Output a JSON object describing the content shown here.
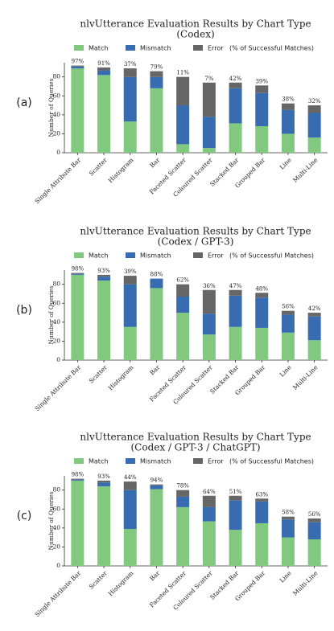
{
  "chart_data": [
    {
      "type": "stacked_bar",
      "panel": "(a)",
      "title": "nlvUtterance Evaluation Results by Chart Type",
      "subtitle": "(Codex)",
      "ylabel": "Number of Queries",
      "categories": [
        "Single Attribute Bar",
        "Scatter",
        "Histogram",
        "Bar",
        "Faceted Scatter",
        "Coloured Scatter",
        "Stacked Bar",
        "Grouped Bar",
        "Line",
        "Multi-Line"
      ],
      "series": [
        {
          "name": "Match",
          "color": "#80c97f",
          "values": [
            89,
            82,
            33,
            68,
            9,
            5,
            31,
            28,
            20,
            16
          ]
        },
        {
          "name": "Mismatch",
          "color": "#386cb0",
          "values": [
            2,
            5,
            47,
            12,
            41,
            33,
            37,
            35,
            25,
            26
          ]
        },
        {
          "name": "Error",
          "color": "#666666",
          "values": [
            1,
            3,
            9,
            6,
            30,
            36,
            6,
            8,
            7,
            8
          ]
        }
      ],
      "legend_note": "(% of Successful Matches)",
      "rates": [
        97,
        91,
        37,
        79,
        11,
        7,
        42,
        39,
        38,
        32
      ],
      "rate_labels": [
        "97%",
        "91%",
        "37%",
        "79%",
        "11%",
        "7%",
        "42%",
        "39%",
        "38%",
        "32%"
      ],
      "ylim": [
        0,
        95
      ],
      "yticks": [
        0,
        20,
        40,
        60,
        80
      ]
    },
    {
      "type": "stacked_bar",
      "panel": "(b)",
      "title": "nlvUtterance Evaluation Results by Chart Type",
      "subtitle": "(Codex / GPT-3)",
      "ylabel": "Number of Queries",
      "categories": [
        "Single Attribute Bar",
        "Scatter",
        "Histogram",
        "Bar",
        "Faceted Scatter",
        "Coloured Scatter",
        "Stacked Bar",
        "Grouped Bar",
        "Line",
        "Multi-Line"
      ],
      "series": [
        {
          "name": "Match",
          "color": "#80c97f",
          "values": [
            90,
            84,
            35,
            76,
            50,
            27,
            35,
            34,
            29,
            21
          ]
        },
        {
          "name": "Mismatch",
          "color": "#386cb0",
          "values": [
            1,
            4,
            45,
            10,
            17,
            22,
            33,
            32,
            19,
            25
          ]
        },
        {
          "name": "Error",
          "color": "#666666",
          "values": [
            1,
            2,
            9,
            0,
            13,
            25,
            6,
            5,
            4,
            4
          ]
        }
      ],
      "legend_note": "(% of Successful Matches)",
      "rates": [
        98,
        93,
        39,
        88,
        62,
        36,
        47,
        48,
        56,
        42
      ],
      "rate_labels": [
        "98%",
        "93%",
        "39%",
        "88%",
        "62%",
        "36%",
        "47%",
        "48%",
        "56%",
        "42%"
      ],
      "ylim": [
        0,
        95
      ],
      "yticks": [
        0,
        20,
        40,
        60,
        80
      ]
    },
    {
      "type": "stacked_bar",
      "panel": "(c)",
      "title": "nlvUtterance Evaluation Results by Chart Type",
      "subtitle": "(Codex / GPT-3 / ChatGPT)",
      "ylabel": "Number of Queries",
      "categories": [
        "Single Attribute Bar",
        "Scatter",
        "Histogram",
        "Bar",
        "Faceted Scatter",
        "Coloured Scatter",
        "Stacked Bar",
        "Grouped Bar",
        "Line",
        "Multi-Line"
      ],
      "series": [
        {
          "name": "Match",
          "color": "#80c97f",
          "values": [
            90,
            84,
            39,
            81,
            62,
            47,
            38,
            45,
            30,
            28
          ]
        },
        {
          "name": "Mismatch",
          "color": "#386cb0",
          "values": [
            1,
            4,
            41,
            4,
            11,
            15,
            31,
            23,
            19,
            18
          ]
        },
        {
          "name": "Error",
          "color": "#666666",
          "values": [
            1,
            2,
            9,
            1,
            7,
            12,
            5,
            3,
            3,
            4
          ]
        }
      ],
      "legend_note": "(% of Successful Matches)",
      "rates": [
        98,
        93,
        44,
        94,
        78,
        64,
        51,
        63,
        58,
        56
      ],
      "rate_labels": [
        "98%",
        "93%",
        "44%",
        "94%",
        "78%",
        "64%",
        "51%",
        "63%",
        "58%",
        "56%"
      ],
      "ylim": [
        0,
        95
      ],
      "yticks": [
        0,
        20,
        40,
        60,
        80
      ]
    }
  ]
}
